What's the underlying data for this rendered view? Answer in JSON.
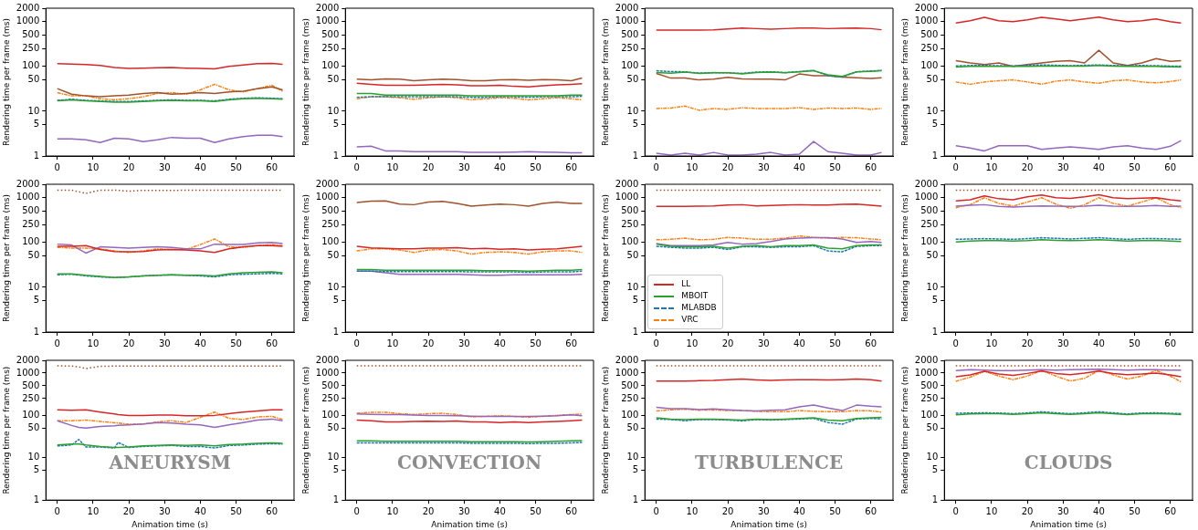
{
  "chart_data": [
    {
      "type": "line",
      "ylabel": "Rendering time per frame (ms)",
      "x": [
        0,
        4,
        8,
        12,
        16,
        20,
        24,
        28,
        32,
        36,
        40,
        44,
        48,
        52,
        56,
        60,
        63
      ],
      "xlim": [
        -3.2,
        66.2
      ],
      "xticks": [
        0,
        10,
        20,
        30,
        40,
        50,
        60
      ],
      "ylim": [
        1,
        2000
      ],
      "yticks": [
        1,
        5,
        10,
        50,
        100,
        250,
        500,
        1000,
        2000
      ],
      "log": "y",
      "grid": false,
      "marker": "none",
      "series": [
        {
          "color": "#d62728",
          "line_style": "solid",
          "values": [
            115,
            113,
            110,
            105,
            95,
            90,
            92,
            94,
            95,
            92,
            90,
            88,
            100,
            108,
            115,
            117,
            112
          ]
        },
        {
          "color": "#2ca02c",
          "line_style": "solid",
          "values": [
            17,
            18,
            17,
            16.5,
            16,
            16,
            16.5,
            17,
            17.5,
            17,
            17,
            16.5,
            18,
            19,
            19.5,
            19,
            18.5
          ]
        },
        {
          "color": "#1f77b4",
          "line_style": "dashed",
          "values": [
            17.5,
            18.5,
            17.5,
            17,
            16.5,
            16.5,
            17,
            17.5,
            18,
            17.5,
            17.5,
            17,
            18.5,
            19.5,
            20,
            19.5,
            19
          ]
        },
        {
          "color": "#a0522d",
          "line_style": "solid",
          "values": [
            32,
            24,
            22,
            21,
            22,
            23,
            25,
            26,
            24,
            25,
            26,
            25,
            27,
            28,
            32,
            35,
            30
          ]
        },
        {
          "color": "#9467bd",
          "line_style": "solid",
          "values": [
            2.4,
            2.4,
            2.3,
            2.0,
            2.5,
            2.4,
            2.1,
            2.3,
            2.6,
            2.5,
            2.5,
            2.0,
            2.4,
            2.7,
            2.9,
            2.9,
            2.7
          ]
        },
        {
          "color": "#ff7f0e",
          "line_style": "dashdot",
          "values": [
            26,
            22,
            22,
            19,
            18,
            19,
            21,
            25,
            26,
            24,
            30,
            40,
            30,
            27,
            32,
            38,
            28
          ]
        }
      ]
    },
    {
      "type": "line",
      "ylabel": "Rendering time per frame (ms)",
      "x": [
        0,
        4,
        8,
        12,
        16,
        20,
        24,
        28,
        32,
        36,
        40,
        44,
        48,
        52,
        56,
        60,
        63
      ],
      "xlim": [
        -3.2,
        66.2
      ],
      "xticks": [
        0,
        10,
        20,
        30,
        40,
        50,
        60
      ],
      "ylim": [
        1,
        2000
      ],
      "yticks": [
        1,
        5,
        10,
        50,
        100,
        250,
        500,
        1000,
        2000
      ],
      "log": "y",
      "grid": false,
      "marker": "none",
      "series": [
        {
          "color": "#d62728",
          "line_style": "solid",
          "values": [
            42,
            40,
            38,
            38,
            38,
            39,
            40,
            39,
            37,
            37,
            38,
            36,
            35,
            37,
            39,
            40,
            41
          ]
        },
        {
          "color": "#2ca02c",
          "line_style": "solid",
          "values": [
            25,
            25,
            23,
            23,
            23,
            23,
            23,
            23,
            22,
            22,
            22,
            22,
            22,
            22,
            22,
            23,
            23
          ]
        },
        {
          "color": "#1f77b4",
          "line_style": "dashed",
          "values": [
            20.5,
            21,
            21,
            21,
            21,
            21,
            21,
            21,
            20.5,
            20.5,
            21,
            21,
            20.5,
            21,
            21,
            21,
            21.5
          ]
        },
        {
          "color": "#a0522d",
          "line_style": "solid",
          "values": [
            52,
            50,
            53,
            52,
            48,
            50,
            52,
            51,
            48,
            48,
            50,
            51,
            49,
            51,
            50,
            48,
            55
          ]
        },
        {
          "color": "#9467bd",
          "line_style": "solid",
          "values": [
            1.6,
            1.65,
            1.3,
            1.3,
            1.25,
            1.25,
            1.25,
            1.25,
            1.2,
            1.2,
            1.2,
            1.22,
            1.25,
            1.22,
            1.2,
            1.18,
            1.18
          ]
        },
        {
          "color": "#ff7f0e",
          "line_style": "dashdot",
          "values": [
            19,
            21,
            21,
            20,
            18.5,
            20,
            21,
            20,
            18,
            19,
            20,
            19.5,
            18,
            19,
            20,
            19,
            18
          ]
        }
      ]
    },
    {
      "type": "line",
      "ylabel": "Rendering time per frame (ms)",
      "x": [
        0,
        4,
        8,
        12,
        16,
        20,
        24,
        28,
        32,
        36,
        40,
        44,
        48,
        52,
        56,
        60,
        63
      ],
      "xlim": [
        -3.2,
        66.2
      ],
      "xticks": [
        0,
        10,
        20,
        30,
        40,
        50,
        60
      ],
      "ylim": [
        1,
        2000
      ],
      "yticks": [
        1,
        5,
        10,
        50,
        100,
        250,
        500,
        1000,
        2000
      ],
      "log": "y",
      "grid": false,
      "marker": "none",
      "series": [
        {
          "color": "#d62728",
          "line_style": "solid",
          "values": [
            650,
            650,
            650,
            650,
            660,
            690,
            720,
            700,
            680,
            700,
            720,
            720,
            700,
            710,
            720,
            700,
            660
          ]
        },
        {
          "color": "#2ca02c",
          "line_style": "solid",
          "values": [
            73,
            71,
            75,
            70,
            72,
            72,
            68,
            73,
            75,
            72,
            76,
            80,
            65,
            60,
            76,
            78,
            80
          ]
        },
        {
          "color": "#1f77b4",
          "line_style": "dashed",
          "values": [
            80,
            77,
            76,
            71,
            73,
            72,
            70,
            75,
            76,
            73,
            77,
            82,
            62,
            58,
            76,
            79,
            82
          ]
        },
        {
          "color": "#a0522d",
          "line_style": "solid",
          "values": [
            70,
            55,
            55,
            50,
            52,
            57,
            53,
            52,
            52,
            50,
            68,
            62,
            62,
            58,
            56,
            54,
            56
          ]
        },
        {
          "color": "#9467bd",
          "line_style": "solid",
          "values": [
            1.15,
            1.05,
            1.15,
            1.05,
            1.2,
            1.05,
            1.05,
            1.1,
            1.2,
            1.05,
            1.1,
            2.1,
            1.25,
            1.15,
            1.05,
            1.05,
            1.2
          ]
        },
        {
          "color": "#ff7f0e",
          "line_style": "dashdot",
          "values": [
            11.5,
            11.8,
            13,
            10.5,
            11.5,
            11,
            12,
            11.5,
            11.5,
            11.5,
            12,
            11,
            11.8,
            11.5,
            11.8,
            11,
            11.5
          ]
        }
      ]
    },
    {
      "type": "line",
      "ylabel": "Rendering time per frame (ms)",
      "x": [
        0,
        4,
        8,
        12,
        16,
        20,
        24,
        28,
        32,
        36,
        40,
        44,
        48,
        52,
        56,
        60,
        63
      ],
      "xlim": [
        -3.2,
        66.2
      ],
      "xticks": [
        0,
        10,
        20,
        30,
        40,
        50,
        60
      ],
      "ylim": [
        1,
        2000
      ],
      "yticks": [
        1,
        5,
        10,
        50,
        100,
        250,
        500,
        1000,
        2000
      ],
      "log": "y",
      "grid": false,
      "marker": "none",
      "series": [
        {
          "color": "#d62728",
          "line_style": "solid",
          "values": [
            930,
            1050,
            1250,
            1050,
            1000,
            1100,
            1250,
            1150,
            1050,
            1150,
            1270,
            1100,
            1000,
            1050,
            1150,
            1000,
            930
          ]
        },
        {
          "color": "#2ca02c",
          "line_style": "solid",
          "values": [
            97,
            100,
            100,
            100,
            100,
            100,
            102,
            102,
            102,
            102,
            105,
            102,
            100,
            100,
            100,
            98,
            97
          ]
        },
        {
          "color": "#1f77b4",
          "line_style": "dashed",
          "values": [
            103,
            105,
            105,
            104,
            103,
            106,
            108,
            106,
            104,
            106,
            108,
            105,
            104,
            105,
            104,
            102,
            102
          ]
        },
        {
          "color": "#a0522d",
          "line_style": "solid",
          "values": [
            135,
            120,
            110,
            120,
            100,
            110,
            120,
            130,
            135,
            120,
            230,
            120,
            105,
            120,
            150,
            130,
            135
          ]
        },
        {
          "color": "#9467bd",
          "line_style": "solid",
          "values": [
            1.7,
            1.5,
            1.3,
            1.7,
            1.7,
            1.7,
            1.4,
            1.5,
            1.6,
            1.5,
            1.4,
            1.6,
            1.7,
            1.5,
            1.4,
            1.65,
            2.2
          ]
        },
        {
          "color": "#ff7f0e",
          "line_style": "dashdot",
          "values": [
            45,
            40,
            45,
            48,
            50,
            45,
            40,
            47,
            50,
            45,
            42,
            48,
            50,
            45,
            43,
            46,
            50
          ]
        }
      ]
    },
    {
      "type": "line",
      "ylabel": "Rendering time per frame (ms)",
      "x": [
        0,
        4,
        8,
        12,
        16,
        20,
        24,
        28,
        32,
        36,
        40,
        44,
        48,
        52,
        56,
        60,
        63
      ],
      "xlim": [
        -3.2,
        66.2
      ],
      "xticks": [
        0,
        10,
        20,
        30,
        40,
        50,
        60
      ],
      "ylim": [
        1,
        2000
      ],
      "yticks": [
        1,
        5,
        10,
        50,
        100,
        250,
        500,
        1000,
        2000
      ],
      "log": "y",
      "grid": false,
      "marker": "none",
      "series": [
        {
          "color": "#d62728",
          "line_style": "solid",
          "values": [
            82,
            82,
            85,
            70,
            63,
            62,
            63,
            68,
            70,
            68,
            65,
            60,
            72,
            80,
            85,
            85,
            82
          ]
        },
        {
          "color": "#2ca02c",
          "line_style": "solid",
          "values": [
            20,
            20,
            18.5,
            17.5,
            16.5,
            17,
            18,
            18.5,
            19,
            18.5,
            18.5,
            18,
            20,
            21,
            21.5,
            22,
            21
          ]
        },
        {
          "color": "#1f77b4",
          "line_style": "dashed",
          "values": [
            19,
            19.5,
            18,
            17,
            16.5,
            17,
            18,
            18.5,
            19,
            18.5,
            18,
            17,
            19,
            19.5,
            20,
            20.5,
            20
          ]
        },
        {
          "color": "#a0522d",
          "line_style": "dotted",
          "values": [
            1480,
            1480,
            1250,
            1480,
            1480,
            1400,
            1460,
            1460,
            1460,
            1470,
            1470,
            1470,
            1470,
            1470,
            1470,
            1470,
            1470
          ]
        },
        {
          "color": "#9467bd",
          "line_style": "solid",
          "values": [
            92,
            88,
            58,
            80,
            78,
            75,
            78,
            80,
            78,
            72,
            72,
            92,
            90,
            90,
            98,
            100,
            95
          ]
        },
        {
          "color": "#ff7f0e",
          "line_style": "dashdot",
          "values": [
            78,
            75,
            75,
            72,
            65,
            60,
            65,
            72,
            70,
            70,
            90,
            120,
            80,
            78,
            85,
            90,
            85
          ]
        }
      ]
    },
    {
      "type": "line",
      "ylabel": "Rendering time per frame (ms)",
      "x": [
        0,
        4,
        8,
        12,
        16,
        20,
        24,
        28,
        32,
        36,
        40,
        44,
        48,
        52,
        56,
        60,
        63
      ],
      "xlim": [
        -3.2,
        66.2
      ],
      "xticks": [
        0,
        10,
        20,
        30,
        40,
        50,
        60
      ],
      "ylim": [
        1,
        2000
      ],
      "yticks": [
        1,
        5,
        10,
        50,
        100,
        250,
        500,
        1000,
        2000
      ],
      "log": "y",
      "grid": false,
      "marker": "none",
      "series": [
        {
          "color": "#d62728",
          "line_style": "solid",
          "values": [
            82,
            76,
            74,
            72,
            72,
            75,
            75,
            77,
            72,
            74,
            71,
            72,
            68,
            71,
            72,
            78,
            82
          ]
        },
        {
          "color": "#2ca02c",
          "line_style": "solid",
          "values": [
            25,
            25,
            24,
            24,
            24,
            24,
            24,
            24,
            24,
            23.5,
            23.5,
            23.5,
            23,
            23.5,
            24,
            24,
            25
          ]
        },
        {
          "color": "#1f77b4",
          "line_style": "dashed",
          "values": [
            23,
            23,
            22.5,
            22.5,
            22.5,
            22.5,
            22.5,
            22.5,
            22,
            22,
            22,
            22,
            21.5,
            22,
            22,
            22,
            23
          ]
        },
        {
          "color": "#a0522d",
          "line_style": "solid",
          "values": [
            780,
            840,
            850,
            720,
            700,
            800,
            830,
            750,
            650,
            690,
            720,
            700,
            650,
            750,
            800,
            750,
            750
          ]
        },
        {
          "color": "#9467bd",
          "line_style": "solid",
          "values": [
            23,
            23,
            21,
            19.5,
            19.5,
            19.5,
            19.5,
            19.5,
            19,
            18.5,
            18.5,
            19,
            19,
            19,
            19,
            19,
            19.5
          ]
        },
        {
          "color": "#ff7f0e",
          "line_style": "dashdot",
          "values": [
            65,
            72,
            72,
            68,
            60,
            68,
            70,
            65,
            55,
            60,
            62,
            60,
            55,
            62,
            65,
            65,
            60
          ]
        }
      ]
    },
    {
      "type": "line",
      "ylabel": "Rendering time per frame (ms)",
      "x": [
        0,
        4,
        8,
        12,
        16,
        20,
        24,
        28,
        32,
        36,
        40,
        44,
        48,
        52,
        56,
        60,
        63
      ],
      "xlim": [
        -3.2,
        66.2
      ],
      "xticks": [
        0,
        10,
        20,
        30,
        40,
        50,
        60
      ],
      "ylim": [
        1,
        2000
      ],
      "yticks": [
        1,
        5,
        10,
        50,
        100,
        250,
        500,
        1000,
        2000
      ],
      "log": "y",
      "grid": false,
      "marker": "none",
      "legend": "bottom left",
      "series": [
        {
          "name": "LL",
          "color": "#d62728",
          "line_style": "solid",
          "values": [
            640,
            640,
            640,
            650,
            660,
            690,
            700,
            660,
            670,
            690,
            700,
            690,
            690,
            710,
            720,
            680,
            650
          ]
        },
        {
          "name": "MBOIT",
          "color": "#2ca02c",
          "line_style": "solid",
          "values": [
            92,
            82,
            80,
            80,
            82,
            75,
            82,
            85,
            80,
            85,
            85,
            88,
            75,
            72,
            85,
            88,
            88
          ]
        },
        {
          "name": "MLABDB",
          "color": "#1f77b4",
          "line_style": "dashed",
          "values": [
            82,
            78,
            75,
            75,
            78,
            70,
            80,
            80,
            78,
            80,
            80,
            85,
            65,
            62,
            82,
            85,
            85
          ]
        },
        {
          "color": "#a0522d",
          "line_style": "dotted",
          "values": [
            1480,
            1480,
            1480,
            1480,
            1480,
            1480,
            1480,
            1480,
            1480,
            1480,
            1480,
            1480,
            1480,
            1480,
            1480,
            1480,
            1480
          ]
        },
        {
          "color": "#9467bd",
          "line_style": "solid",
          "values": [
            95,
            85,
            85,
            85,
            88,
            100,
            92,
            95,
            105,
            120,
            125,
            128,
            128,
            120,
            100,
            105,
            100
          ]
        },
        {
          "name": "VRC",
          "color": "#ff7f0e",
          "line_style": "dashdot",
          "values": [
            115,
            118,
            125,
            115,
            118,
            130,
            125,
            118,
            118,
            125,
            140,
            130,
            125,
            130,
            128,
            120,
            115
          ]
        }
      ]
    },
    {
      "type": "line",
      "ylabel": "Rendering time per frame (ms)",
      "x": [
        0,
        4,
        8,
        12,
        16,
        20,
        24,
        28,
        32,
        36,
        40,
        44,
        48,
        52,
        56,
        60,
        63
      ],
      "xlim": [
        -3.2,
        66.2
      ],
      "xticks": [
        0,
        10,
        20,
        30,
        40,
        50,
        60
      ],
      "ylim": [
        1,
        2000
      ],
      "yticks": [
        1,
        5,
        10,
        50,
        100,
        250,
        500,
        1000,
        2000
      ],
      "log": "y",
      "grid": false,
      "marker": "none",
      "series": [
        {
          "color": "#d62728",
          "line_style": "solid",
          "values": [
            850,
            900,
            1100,
            950,
            900,
            1050,
            1150,
            1000,
            970,
            1050,
            1170,
            1000,
            950,
            980,
            1000,
            900,
            850
          ]
        },
        {
          "color": "#2ca02c",
          "line_style": "solid",
          "values": [
            103,
            108,
            110,
            110,
            108,
            110,
            115,
            112,
            110,
            112,
            116,
            112,
            108,
            110,
            112,
            108,
            105
          ]
        },
        {
          "color": "#1f77b4",
          "line_style": "dashed",
          "values": [
            118,
            120,
            122,
            120,
            118,
            122,
            128,
            124,
            120,
            124,
            128,
            122,
            118,
            122,
            122,
            120,
            118
          ]
        },
        {
          "color": "#a0522d",
          "line_style": "dotted",
          "values": [
            1480,
            1480,
            1480,
            1480,
            1480,
            1480,
            1480,
            1480,
            1480,
            1480,
            1480,
            1480,
            1480,
            1480,
            1480,
            1480,
            1480
          ]
        },
        {
          "color": "#9467bd",
          "line_style": "solid",
          "values": [
            650,
            680,
            700,
            640,
            620,
            640,
            660,
            650,
            640,
            650,
            680,
            650,
            640,
            650,
            670,
            640,
            650
          ]
        },
        {
          "color": "#ff7f0e",
          "line_style": "dashdot",
          "values": [
            600,
            700,
            1000,
            750,
            650,
            800,
            1000,
            720,
            580,
            700,
            1000,
            750,
            650,
            800,
            1000,
            700,
            600
          ]
        }
      ]
    },
    {
      "type": "line",
      "ylabel": "Rendering time per frame (ms)",
      "xlabel": "Animation time (s)",
      "annotations": [
        "ANEURYSM"
      ],
      "x": [
        0,
        4,
        6,
        8,
        12,
        16,
        17,
        20,
        24,
        28,
        32,
        36,
        40,
        44,
        48,
        52,
        56,
        60,
        63
      ],
      "xlim": [
        -3.2,
        66.2
      ],
      "xticks": [
        0,
        10,
        20,
        30,
        40,
        50,
        60
      ],
      "ylim": [
        1,
        2000
      ],
      "yticks": [
        1,
        5,
        10,
        50,
        100,
        250,
        500,
        1000,
        2000
      ],
      "log": "y",
      "grid": false,
      "marker": "none",
      "series": [
        {
          "color": "#d62728",
          "line_style": "solid",
          "values": [
            135,
            132,
            134,
            135,
            120,
            108,
            105,
            100,
            100,
            102,
            102,
            98,
            98,
            100,
            110,
            120,
            128,
            135,
            135
          ]
        },
        {
          "color": "#2ca02c",
          "line_style": "solid",
          "values": [
            20,
            21,
            21,
            20,
            18.5,
            17.5,
            17.5,
            18,
            19,
            19.5,
            20,
            19.5,
            20,
            19,
            20.5,
            21,
            22,
            22.5,
            22
          ]
        },
        {
          "color": "#1f77b4",
          "line_style": "dashed",
          "values": [
            19,
            20,
            27,
            18,
            18,
            17,
            23,
            17.5,
            18.5,
            19,
            19.5,
            18.5,
            18.5,
            17,
            19.5,
            20,
            21,
            21.5,
            21
          ]
        },
        {
          "color": "#a0522d",
          "line_style": "dotted",
          "values": [
            1480,
            1470,
            1400,
            1280,
            1450,
            1460,
            1460,
            1460,
            1460,
            1460,
            1460,
            1460,
            1470,
            1470,
            1470,
            1470,
            1470,
            1470,
            1470
          ]
        },
        {
          "color": "#9467bd",
          "line_style": "solid",
          "values": [
            75,
            58,
            52,
            50,
            55,
            57,
            58,
            60,
            63,
            68,
            66,
            62,
            60,
            52,
            60,
            68,
            78,
            82,
            75
          ]
        },
        {
          "color": "#ff7f0e",
          "line_style": "dashdot",
          "values": [
            75,
            75,
            76,
            78,
            72,
            67,
            66,
            62,
            62,
            70,
            75,
            68,
            90,
            120,
            85,
            80,
            92,
            95,
            80
          ]
        }
      ]
    },
    {
      "type": "line",
      "ylabel": "Rendering time per frame (ms)",
      "xlabel": "Animation time (s)",
      "annotations": [
        "CONVECTION"
      ],
      "x": [
        0,
        4,
        8,
        12,
        16,
        20,
        24,
        28,
        32,
        36,
        40,
        44,
        48,
        52,
        56,
        60,
        63
      ],
      "xlim": [
        -3.2,
        66.2
      ],
      "xticks": [
        0,
        10,
        20,
        30,
        40,
        50,
        60
      ],
      "ylim": [
        1,
        2000
      ],
      "yticks": [
        1,
        5,
        10,
        50,
        100,
        250,
        500,
        1000,
        2000
      ],
      "log": "y",
      "grid": false,
      "marker": "none",
      "series": [
        {
          "color": "#d62728",
          "line_style": "solid",
          "values": [
            78,
            75,
            70,
            70,
            72,
            73,
            72,
            74,
            70,
            70,
            68,
            70,
            68,
            70,
            72,
            75,
            78
          ]
        },
        {
          "color": "#2ca02c",
          "line_style": "solid",
          "values": [
            25,
            25,
            24.5,
            24.5,
            24.5,
            24.5,
            24.5,
            24.5,
            24,
            24,
            24,
            24,
            23.5,
            24,
            24.5,
            25,
            25.5
          ]
        },
        {
          "color": "#1f77b4",
          "line_style": "dashed",
          "values": [
            22.5,
            22.5,
            22.5,
            22.5,
            22.5,
            22.5,
            22.5,
            22.5,
            22,
            22,
            22,
            22,
            21.5,
            22,
            22,
            22.5,
            23
          ]
        },
        {
          "color": "#a0522d",
          "line_style": "dotted",
          "values": [
            1480,
            1480,
            1480,
            1480,
            1480,
            1480,
            1480,
            1480,
            1480,
            1480,
            1480,
            1480,
            1480,
            1480,
            1480,
            1480,
            1480
          ]
        },
        {
          "color": "#9467bd",
          "line_style": "solid",
          "values": [
            108,
            106,
            105,
            104,
            102,
            100,
            99,
            98,
            96,
            95,
            95,
            95,
            95,
            96,
            98,
            103,
            98
          ]
        },
        {
          "color": "#ff7f0e",
          "line_style": "dashdot",
          "values": [
            112,
            118,
            118,
            110,
            105,
            110,
            112,
            105,
            92,
            95,
            98,
            95,
            90,
            95,
            100,
            105,
            108
          ]
        }
      ]
    },
    {
      "type": "line",
      "ylabel": "Rendering time per frame (ms)",
      "xlabel": "Animation time (s)",
      "annotations": [
        "TURBULENCE"
      ],
      "x": [
        0,
        4,
        8,
        12,
        16,
        20,
        24,
        28,
        32,
        36,
        40,
        44,
        48,
        52,
        56,
        60,
        63
      ],
      "xlim": [
        -3.2,
        66.2
      ],
      "xticks": [
        0,
        10,
        20,
        30,
        40,
        50,
        60
      ],
      "ylim": [
        1,
        2000
      ],
      "yticks": [
        1,
        5,
        10,
        50,
        100,
        250,
        500,
        1000,
        2000
      ],
      "log": "y",
      "grid": false,
      "marker": "none",
      "series": [
        {
          "color": "#d62728",
          "line_style": "solid",
          "values": [
            650,
            650,
            650,
            660,
            670,
            700,
            720,
            690,
            670,
            690,
            700,
            700,
            690,
            700,
            720,
            700,
            650
          ]
        },
        {
          "color": "#2ca02c",
          "line_style": "solid",
          "values": [
            88,
            82,
            80,
            82,
            82,
            80,
            78,
            82,
            80,
            82,
            85,
            88,
            78,
            75,
            85,
            88,
            90
          ]
        },
        {
          "color": "#1f77b4",
          "line_style": "dashed",
          "values": [
            82,
            80,
            75,
            80,
            80,
            78,
            74,
            80,
            78,
            80,
            82,
            85,
            68,
            62,
            82,
            85,
            83
          ]
        },
        {
          "color": "#a0522d",
          "line_style": "dotted",
          "values": [
            1480,
            1480,
            1480,
            1480,
            1480,
            1480,
            1480,
            1480,
            1480,
            1480,
            1480,
            1480,
            1480,
            1480,
            1480,
            1480,
            1480
          ]
        },
        {
          "color": "#9467bd",
          "line_style": "solid",
          "values": [
            155,
            145,
            145,
            138,
            142,
            135,
            130,
            128,
            132,
            135,
            160,
            175,
            150,
            130,
            175,
            165,
            160
          ]
        },
        {
          "color": "#ff7f0e",
          "line_style": "dashdot",
          "values": [
            128,
            135,
            140,
            133,
            135,
            130,
            130,
            125,
            122,
            122,
            130,
            125,
            122,
            122,
            130,
            128,
            120
          ]
        }
      ]
    },
    {
      "type": "line",
      "ylabel": "Rendering time per frame (ms)",
      "xlabel": "Animation time (s)",
      "annotations": [
        "CLOUDS"
      ],
      "x": [
        0,
        4,
        8,
        12,
        16,
        20,
        24,
        28,
        32,
        36,
        40,
        44,
        48,
        52,
        56,
        60,
        63
      ],
      "xlim": [
        -3.2,
        66.2
      ],
      "xticks": [
        0,
        10,
        20,
        30,
        40,
        50,
        60
      ],
      "ylim": [
        1,
        2000
      ],
      "yticks": [
        1,
        5,
        10,
        50,
        100,
        250,
        500,
        1000,
        2000
      ],
      "log": "y",
      "grid": false,
      "marker": "none",
      "series": [
        {
          "color": "#d62728",
          "line_style": "solid",
          "values": [
            820,
            900,
            1100,
            950,
            880,
            980,
            1120,
            980,
            920,
            1000,
            1120,
            970,
            920,
            950,
            1000,
            900,
            820
          ]
        },
        {
          "color": "#2ca02c",
          "line_style": "solid",
          "values": [
            103,
            108,
            110,
            110,
            106,
            110,
            115,
            110,
            106,
            110,
            115,
            110,
            104,
            110,
            110,
            108,
            105
          ]
        },
        {
          "color": "#1f77b4",
          "line_style": "dashed",
          "values": [
            112,
            114,
            115,
            114,
            110,
            114,
            122,
            115,
            110,
            115,
            122,
            115,
            108,
            114,
            115,
            112,
            110
          ]
        },
        {
          "color": "#a0522d",
          "line_style": "dotted",
          "values": [
            1480,
            1480,
            1480,
            1480,
            1480,
            1480,
            1480,
            1480,
            1480,
            1480,
            1480,
            1480,
            1480,
            1480,
            1480,
            1480,
            1480
          ]
        },
        {
          "color": "#9467bd",
          "line_style": "solid",
          "values": [
            1150,
            1200,
            1180,
            1150,
            1150,
            1180,
            1200,
            1180,
            1200,
            1220,
            1230,
            1200,
            1180,
            1200,
            1200,
            1180,
            1170
          ]
        },
        {
          "color": "#ff7f0e",
          "line_style": "dashdot",
          "values": [
            640,
            800,
            1100,
            850,
            700,
            850,
            1150,
            850,
            650,
            750,
            1150,
            900,
            720,
            850,
            1150,
            850,
            620
          ]
        }
      ]
    }
  ]
}
